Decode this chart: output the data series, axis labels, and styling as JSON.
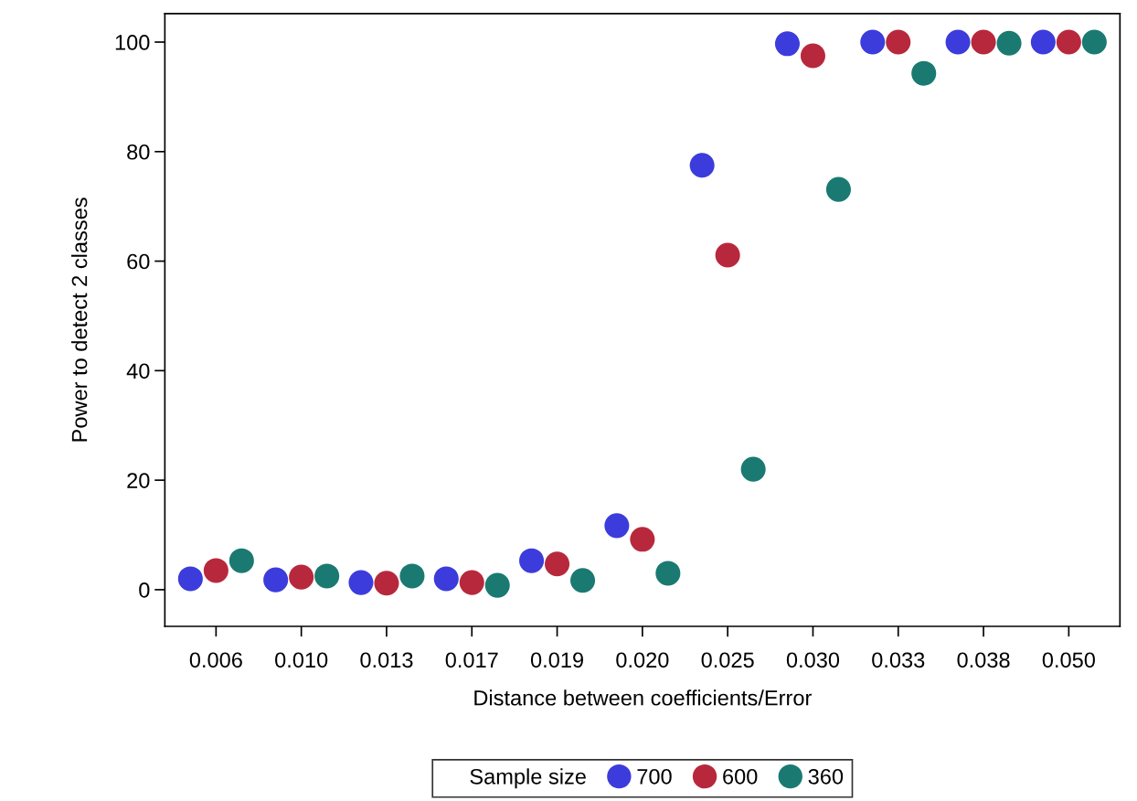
{
  "chart_data": {
    "type": "scatter",
    "xlabel": "Distance between coefficients/Error",
    "ylabel": "Power to detect 2 classes",
    "categories": [
      "0.006",
      "0.010",
      "0.013",
      "0.017",
      "0.019",
      "0.020",
      "0.025",
      "0.030",
      "0.033",
      "0.038",
      "0.050"
    ],
    "series": [
      {
        "name": "700",
        "color": "#3c3cdc",
        "values": [
          2.0,
          1.8,
          1.3,
          2.0,
          5.3,
          11.7,
          77.5,
          99.7,
          100,
          100,
          100
        ]
      },
      {
        "name": "600",
        "color": "#b8283c",
        "values": [
          3.5,
          2.3,
          1.2,
          1.3,
          4.7,
          9.2,
          61.1,
          97.5,
          100,
          100,
          100
        ]
      },
      {
        "name": "360",
        "color": "#1a7a72",
        "values": [
          5.3,
          2.5,
          2.5,
          0.8,
          1.7,
          3.0,
          22.0,
          73.1,
          94.3,
          99.8,
          100
        ]
      }
    ],
    "legend_title": "Sample size",
    "legend": "bottom",
    "marker": "circle",
    "grid": false,
    "ylim": [
      -6.7,
      105.2
    ],
    "yticks": [
      0,
      20,
      40,
      60,
      80,
      100
    ]
  }
}
